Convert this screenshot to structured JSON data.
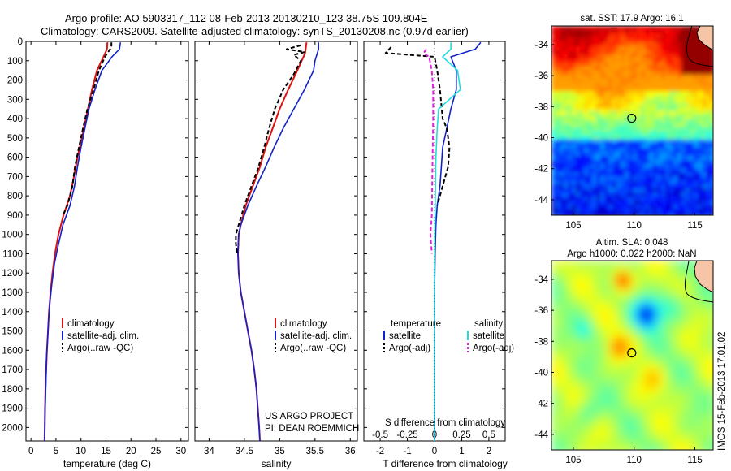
{
  "header": {
    "line1": "Argo profile: AO 5903317_112 08-Feb-2013 20130210_123 38.75S 109.804E",
    "line2": "Climatology: CARS2009. Satellite-adjusted climatology: synTS_20130208.nc (0.97d earlier)"
  },
  "colors": {
    "climatology": "#dd1111",
    "satellite": "#1122cc",
    "argo": "#000000",
    "sal_satellite": "#22dddd",
    "sal_argo": "#dd22dd"
  },
  "panels": {
    "temperature": {
      "xlabel": "temperature (deg C)",
      "legend": [
        "climatology",
        "satellite-adj. clim.",
        "Argo(..raw -QC)"
      ]
    },
    "salinity": {
      "xlabel": "salinity",
      "legend": [
        "climatology",
        "satellite-adj. clim.",
        "Argo(..raw -QC)"
      ],
      "credit1": "US ARGO PROJECT",
      "credit2": "PI: DEAN ROEMMICH"
    },
    "difference": {
      "xlabel": "T difference from climatology",
      "xlabel_top": "S difference from climatology",
      "legend_t_title": "temperature",
      "legend_s_title": "salinity",
      "legend_t": [
        "satellite",
        "Argo(-adj)"
      ],
      "legend_s": [
        "satellite",
        "Argo(-adj)"
      ]
    },
    "sst_map": {
      "title": "sat. SST: 17.9 Argo: 16.1"
    },
    "sla_map": {
      "title1": "Altim. SLA: 0.048",
      "title2": "Argo h1000: 0.022 h2000: NaN"
    }
  },
  "side_stamp": "IMOS 15-Feb-2013 17:01:02",
  "chart_data": [
    {
      "type": "line",
      "name": "temperature",
      "xlim": [
        -1,
        31.5
      ],
      "ylim": [
        0,
        2070
      ],
      "xticks": [
        0,
        5,
        10,
        15,
        20,
        25,
        30
      ],
      "yticks": [
        0,
        100,
        200,
        300,
        400,
        500,
        600,
        700,
        800,
        900,
        1000,
        1100,
        1200,
        1300,
        1400,
        1500,
        1600,
        1700,
        1800,
        1900,
        2000
      ],
      "xlabel": "temperature (deg C)",
      "series": [
        {
          "name": "climatology",
          "points": [
            [
              15.3,
              5
            ],
            [
              15.2,
              40
            ],
            [
              14.5,
              80
            ],
            [
              13.2,
              150
            ],
            [
              12.2,
              250
            ],
            [
              11.0,
              400
            ],
            [
              10.2,
              500
            ],
            [
              9.3,
              600
            ],
            [
              8.6,
              700
            ],
            [
              7.8,
              800
            ],
            [
              6.5,
              900
            ],
            [
              5.5,
              1000
            ],
            [
              4.8,
              1100
            ],
            [
              4.3,
              1200
            ],
            [
              3.9,
              1300
            ],
            [
              3.6,
              1400
            ],
            [
              3.4,
              1500
            ],
            [
              3.2,
              1600
            ],
            [
              3.05,
              1700
            ],
            [
              2.9,
              1800
            ],
            [
              2.8,
              1900
            ],
            [
              2.75,
              2000
            ],
            [
              2.7,
              2070
            ]
          ]
        },
        {
          "name": "satellite-adj. clim.",
          "points": [
            [
              17.9,
              5
            ],
            [
              17.7,
              40
            ],
            [
              16.2,
              80
            ],
            [
              14.2,
              150
            ],
            [
              12.8,
              250
            ],
            [
              11.6,
              350
            ],
            [
              10.8,
              450
            ],
            [
              10.0,
              550
            ],
            [
              9.3,
              650
            ],
            [
              8.7,
              750
            ],
            [
              7.8,
              850
            ],
            [
              6.4,
              950
            ],
            [
              5.5,
              1050
            ],
            [
              4.7,
              1150
            ],
            [
              4.2,
              1250
            ],
            [
              3.8,
              1350
            ],
            [
              3.5,
              1450
            ],
            [
              3.3,
              1550
            ],
            [
              3.1,
              1650
            ],
            [
              3.0,
              1750
            ],
            [
              2.9,
              1850
            ],
            [
              2.8,
              1950
            ],
            [
              2.75,
              2070
            ]
          ]
        },
        {
          "name": "Argo(..raw -QC)",
          "points": [
            [
              16.1,
              5
            ],
            [
              16.1,
              30
            ],
            [
              15.7,
              45
            ],
            [
              14.8,
              80
            ],
            [
              13.6,
              150
            ],
            [
              12.5,
              250
            ],
            [
              11.3,
              350
            ],
            [
              10.4,
              450
            ],
            [
              9.6,
              550
            ],
            [
              8.8,
              650
            ],
            [
              8.3,
              750
            ],
            [
              7.3,
              850
            ],
            [
              6.4,
              900
            ]
          ]
        }
      ]
    },
    {
      "type": "line",
      "name": "salinity",
      "xlim": [
        33.8,
        36.1
      ],
      "ylim": [
        0,
        2070
      ],
      "xticks": [
        34,
        34.5,
        35,
        35.5,
        36
      ],
      "xlabel": "salinity",
      "series": [
        {
          "name": "climatology",
          "points": [
            [
              35.38,
              5
            ],
            [
              35.36,
              60
            ],
            [
              35.25,
              150
            ],
            [
              35.12,
              250
            ],
            [
              35.0,
              350
            ],
            [
              34.9,
              450
            ],
            [
              34.8,
              550
            ],
            [
              34.72,
              650
            ],
            [
              34.62,
              750
            ],
            [
              34.52,
              850
            ],
            [
              34.45,
              950
            ],
            [
              34.42,
              1000
            ],
            [
              34.41,
              1100
            ],
            [
              34.42,
              1200
            ],
            [
              34.45,
              1300
            ],
            [
              34.5,
              1400
            ],
            [
              34.55,
              1500
            ],
            [
              34.6,
              1600
            ],
            [
              34.64,
              1700
            ],
            [
              34.67,
              1800
            ],
            [
              34.69,
              1900
            ],
            [
              34.71,
              2000
            ],
            [
              34.72,
              2070
            ]
          ]
        },
        {
          "name": "satellite-adj. clim.",
          "points": [
            [
              35.55,
              5
            ],
            [
              35.55,
              40
            ],
            [
              35.5,
              100
            ],
            [
              35.48,
              150
            ],
            [
              35.35,
              250
            ],
            [
              35.2,
              350
            ],
            [
              35.05,
              450
            ],
            [
              34.92,
              550
            ],
            [
              34.8,
              650
            ],
            [
              34.67,
              750
            ],
            [
              34.55,
              850
            ],
            [
              34.45,
              950
            ],
            [
              34.42,
              1000
            ],
            [
              34.41,
              1100
            ],
            [
              34.42,
              1200
            ],
            [
              34.45,
              1300
            ],
            [
              34.5,
              1400
            ],
            [
              34.55,
              1500
            ],
            [
              34.6,
              1600
            ],
            [
              34.64,
              1700
            ],
            [
              34.67,
              1800
            ],
            [
              34.69,
              1900
            ],
            [
              34.71,
              2000
            ],
            [
              34.72,
              2070
            ]
          ]
        },
        {
          "name": "Argo(..raw -QC)",
          "points": [
            [
              35.3,
              20
            ],
            [
              35.1,
              40
            ],
            [
              35.35,
              55
            ],
            [
              35.2,
              70
            ],
            [
              35.3,
              100
            ],
            [
              35.2,
              170
            ],
            [
              35.05,
              250
            ],
            [
              34.93,
              350
            ],
            [
              34.85,
              450
            ],
            [
              34.78,
              550
            ],
            [
              34.7,
              650
            ],
            [
              34.6,
              750
            ],
            [
              34.5,
              850
            ],
            [
              34.42,
              950
            ],
            [
              34.38,
              1000
            ],
            [
              34.38,
              1050
            ],
            [
              34.4,
              1100
            ]
          ]
        }
      ]
    },
    {
      "type": "line",
      "name": "difference",
      "xlim": [
        -2.6,
        2.6
      ],
      "ylim": [
        0,
        2070
      ],
      "xticks": [
        -2,
        -1,
        0,
        1,
        2
      ],
      "xticks_top": [
        -0.5,
        -0.25,
        0,
        0.25,
        0.5
      ],
      "xlabel": "T difference from climatology",
      "xlabel_top": "S difference from climatology",
      "series": [
        {
          "name": "T satellite",
          "points": [
            [
              1.7,
              5
            ],
            [
              1.5,
              40
            ],
            [
              0.6,
              80
            ],
            [
              0.8,
              150
            ],
            [
              0.8,
              250
            ],
            [
              0.6,
              350
            ],
            [
              0.45,
              450
            ],
            [
              0.3,
              550
            ],
            [
              0.25,
              650
            ],
            [
              0.2,
              750
            ],
            [
              0.1,
              850
            ],
            [
              0.05,
              950
            ],
            [
              0.02,
              1100
            ],
            [
              0,
              1300
            ],
            [
              0,
              1500
            ],
            [
              0,
              1700
            ],
            [
              0,
              2070
            ]
          ]
        },
        {
          "name": "T Argo(-adj)",
          "points": [
            [
              -1.6,
              30
            ],
            [
              -1.8,
              60
            ],
            [
              0,
              80
            ],
            [
              0.1,
              150
            ],
            [
              0.2,
              250
            ],
            [
              0.3,
              400
            ],
            [
              0.45,
              450
            ],
            [
              0.55,
              550
            ],
            [
              0.5,
              650
            ],
            [
              0.3,
              750
            ],
            [
              0.1,
              850
            ]
          ]
        },
        {
          "name": "S satellite",
          "points": [
            [
              0.6,
              5
            ],
            [
              0.6,
              40
            ],
            [
              0.3,
              80
            ],
            [
              0.85,
              150
            ],
            [
              0.95,
              250
            ],
            [
              0.15,
              350
            ],
            [
              0.1,
              450
            ],
            [
              0.05,
              600
            ],
            [
              0.03,
              800
            ],
            [
              0.01,
              1000
            ],
            [
              0,
              1200
            ],
            [
              0,
              1500
            ],
            [
              0,
              1800
            ],
            [
              0,
              2070
            ]
          ]
        },
        {
          "name": "S Argo(-adj)",
          "points": [
            [
              -0.3,
              40
            ],
            [
              -0.4,
              60
            ],
            [
              -0.2,
              80
            ],
            [
              -0.1,
              150
            ],
            [
              -0.05,
              250
            ],
            [
              -0.05,
              400
            ],
            [
              -0.08,
              700
            ],
            [
              -0.1,
              900
            ],
            [
              -0.15,
              1000
            ],
            [
              -0.1,
              1100
            ]
          ]
        }
      ]
    },
    {
      "type": "heatmap",
      "name": "sat. SST",
      "title": "sat. SST: 17.9 Argo: 16.1",
      "xlim": [
        103.2,
        116.5
      ],
      "ylim": [
        -45,
        -32.8
      ],
      "xticks": [
        105,
        110,
        115
      ],
      "yticks": [
        -34,
        -36,
        -38,
        -40,
        -42,
        -44
      ],
      "argo_position": [
        109.804,
        -38.75
      ]
    },
    {
      "type": "heatmap",
      "name": "Altim. SLA",
      "title": "Altim. SLA: 0.048",
      "subtitle": "Argo h1000: 0.022 h2000: NaN",
      "xlim": [
        103.2,
        116.5
      ],
      "ylim": [
        -45,
        -32.8
      ],
      "xticks": [
        105,
        110,
        115
      ],
      "yticks": [
        -34,
        -36,
        -38,
        -40,
        -42,
        -44
      ],
      "argo_position": [
        109.804,
        -38.75
      ]
    }
  ]
}
